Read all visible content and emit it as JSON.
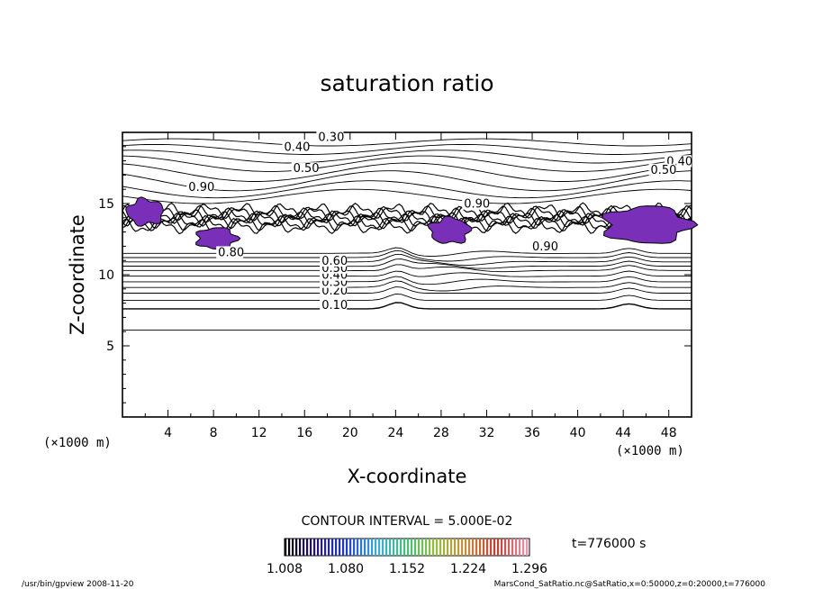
{
  "chart_data": {
    "type": "contour",
    "title": "saturation ratio",
    "xlabel": "X-coordinate",
    "ylabel": "Z-coordinate",
    "x_unit": "(×1000 m)",
    "y_unit": "(×1000 m)",
    "xlim": [
      0,
      50
    ],
    "ylim": [
      0,
      20
    ],
    "x_ticks": [
      4,
      8,
      12,
      16,
      20,
      24,
      28,
      32,
      36,
      40,
      44,
      48
    ],
    "y_ticks": [
      5,
      10,
      15
    ],
    "contour_interval_text": "CONTOUR INTERVAL = 5.000E-02",
    "time_text": "t=776000 s",
    "colorbar_labels": [
      "1.008",
      "1.080",
      "1.152",
      "1.224",
      "1.296"
    ],
    "colorbar_range": [
      1.008,
      1.296
    ],
    "contour_labels": [
      {
        "text": "0.10",
        "x": 17.5,
        "y": 7.6
      },
      {
        "text": "0.20",
        "x": 17.5,
        "y": 8.6
      },
      {
        "text": "0.30",
        "x": 17.5,
        "y": 9.2
      },
      {
        "text": "0.40",
        "x": 17.5,
        "y": 9.7
      },
      {
        "text": "0.50",
        "x": 17.5,
        "y": 10.2
      },
      {
        "text": "0.60",
        "x": 17.5,
        "y": 10.7
      },
      {
        "text": "0.80",
        "x": 8.4,
        "y": 11.3
      },
      {
        "text": "0.90",
        "x": 36.0,
        "y": 11.7
      },
      {
        "text": "0.90",
        "x": 5.8,
        "y": 15.9
      },
      {
        "text": "0.90",
        "x": 30.0,
        "y": 14.7
      },
      {
        "text": "0.30",
        "x": 17.2,
        "y": 19.4
      },
      {
        "text": "0.40",
        "x": 14.2,
        "y": 18.7
      },
      {
        "text": "0.50",
        "x": 15.0,
        "y": 17.2
      },
      {
        "text": "0.40",
        "x": 47.8,
        "y": 17.7
      },
      {
        "text": "0.50",
        "x": 46.4,
        "y": 17.1
      }
    ],
    "supersaturated_patches": [
      {
        "x": [
          0.4,
          3.6
        ],
        "y": [
          13.5,
          15.3
        ]
      },
      {
        "x": [
          6.5,
          10.0
        ],
        "y": [
          11.8,
          13.3
        ]
      },
      {
        "x": [
          27.0,
          30.5
        ],
        "y": [
          12.2,
          14.0
        ]
      },
      {
        "x": [
          42.3,
          49.8
        ],
        "y": [
          12.2,
          14.8
        ]
      }
    ],
    "colors": {
      "supersaturation": "#7a2fb8",
      "contour": "#000000"
    }
  },
  "footer": {
    "left": "/usr/bin/gpview   2008-11-20",
    "right": "MarsCond_SatRatio.nc@SatRatio,x=0:50000,z=0:20000,t=776000"
  }
}
